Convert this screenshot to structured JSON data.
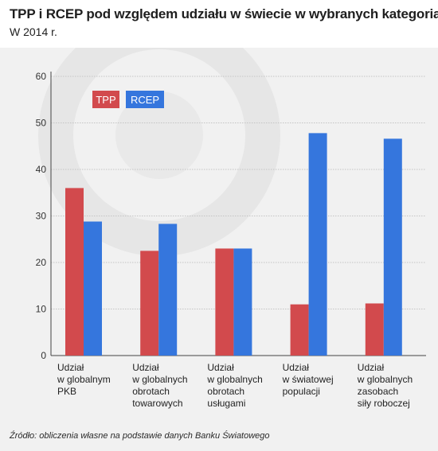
{
  "header": {
    "title": "TPP i RCEP pod względem udziału w świecie w wybranych kategoriach",
    "subtitle": "W 2014 r."
  },
  "source": "Źródło: obliczenia własne na podstawie danych Banku Światowego",
  "colors": {
    "TPP": "#d24a4d",
    "RCEP": "#3576dd",
    "grid": "#c4c4c4",
    "background": "#f1f1f1"
  },
  "chart_data": {
    "type": "bar",
    "title": "TPP i RCEP pod względem udziału w świecie w wybranych kategoriach",
    "subtitle": "W 2014 r.",
    "categories": [
      [
        "Udział",
        "w globalnym",
        "PKB"
      ],
      [
        "Udział",
        "w globalnych",
        "obrotach",
        "towarowych"
      ],
      [
        "Udział",
        "w globalnych",
        "obrotach",
        "usługami"
      ],
      [
        "Udział",
        "w światowej",
        "populacji"
      ],
      [
        "Udział",
        "w globalnych",
        "zasobach",
        "siły roboczej"
      ]
    ],
    "series": [
      {
        "name": "TPP",
        "values": [
          36.0,
          22.5,
          23.0,
          11.0,
          11.2
        ]
      },
      {
        "name": "RCEP",
        "values": [
          28.8,
          28.3,
          23.0,
          47.8,
          46.6
        ]
      }
    ],
    "yticks": [
      "0",
      "10",
      "20",
      "30",
      "40",
      "50",
      "60"
    ],
    "ylim": [
      0,
      60
    ],
    "xlabel": "",
    "ylabel": "",
    "grid": true,
    "legend": "top-left"
  }
}
